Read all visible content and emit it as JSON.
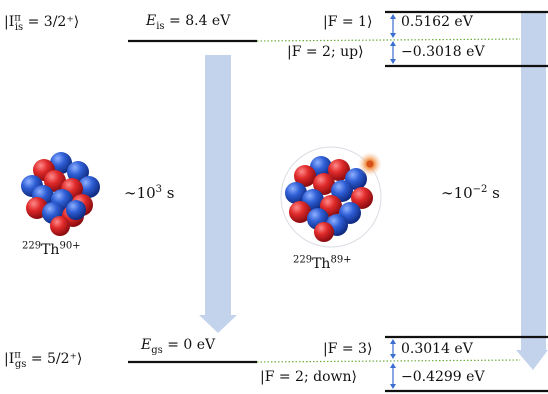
{
  "levels": {
    "isomer": {
      "state_pre": "|I",
      "state_sup": "π",
      "state_sub": "is",
      "state_post": " = 3/2⁺⟩",
      "energy_sym": "E",
      "energy_sub": "is",
      "energy_val": " = 8.4 eV"
    },
    "ground": {
      "state_pre": "|I",
      "state_sup": "π",
      "state_sub": "gs",
      "state_post": " = 5/2⁺⟩",
      "energy_sym": "E",
      "energy_sub": "gs",
      "energy_val": " = 0 eV"
    }
  },
  "hyperfine": {
    "upper": [
      {
        "label": "|F = 1⟩",
        "value": "0.5162 eV"
      },
      {
        "label": "|F = 2; up⟩",
        "value": "−0.3018 eV"
      }
    ],
    "lower": [
      {
        "label": "|F = 3⟩",
        "value": "0.3014 eV"
      },
      {
        "label": "|F = 2; down⟩",
        "value": "−0.4299 eV"
      }
    ]
  },
  "lifetimes": {
    "bare": {
      "base": "∼10",
      "exp": "3",
      "unit": " s"
    },
    "hydrogenic": {
      "base": "∼10",
      "exp": "−2",
      "unit": " s"
    }
  },
  "ions": {
    "bare": {
      "mass": "229",
      "element": "Th",
      "charge": "90+"
    },
    "hydrogenic": {
      "mass": "229",
      "element": "Th",
      "charge": "89+"
    }
  },
  "colors": {
    "arrow": "#c3d3ec",
    "proton": "#d8232a",
    "neutron": "#2a55c8",
    "dotted": "#6cae3c",
    "split_arrow": "#3b6fd0",
    "electron": "#e07020"
  }
}
